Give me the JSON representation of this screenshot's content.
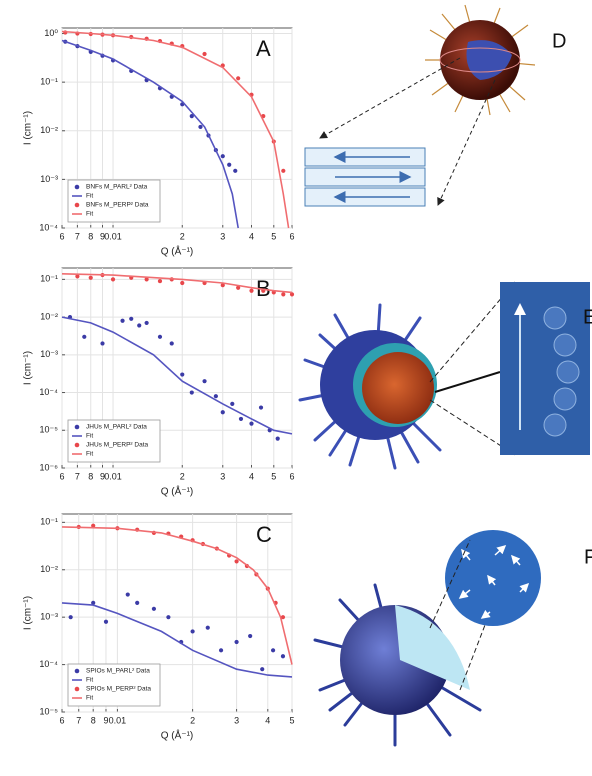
{
  "chart_data": [
    {
      "type": "line",
      "annotation": "A",
      "x_label": "Q (Å⁻¹)",
      "y_label": "I (cm⁻¹)",
      "log_x": true,
      "log_y": true,
      "grid": true,
      "legend": "lower-left",
      "xlim": [
        0.006,
        0.06
      ],
      "xticks": [
        {
          "value": 0.006,
          "label": "6"
        },
        {
          "value": 0.007,
          "label": "7"
        },
        {
          "value": 0.008,
          "label": "8"
        },
        {
          "value": 0.009,
          "label": "9"
        },
        0.01,
        {
          "value": 0.02,
          "label": "2"
        },
        {
          "value": 0.03,
          "label": "3"
        },
        {
          "value": 0.04,
          "label": "4"
        },
        {
          "value": 0.05,
          "label": "5"
        },
        {
          "value": 0.06,
          "label": "6"
        }
      ],
      "ylim": [
        0.0001,
        1.3
      ],
      "yticks": [
        {
          "value": 0.0001,
          "label": "10⁻⁴"
        },
        {
          "value": 0.001,
          "label": "10⁻³"
        },
        {
          "value": 0.01,
          "label": "10⁻²"
        },
        {
          "value": 0.1,
          "label": "10⁻¹"
        },
        {
          "value": 1,
          "label": "10⁰"
        }
      ],
      "series": [
        {
          "name": "BNFs M_PARL² Data",
          "mode": "markers",
          "color": "#3b3ba6",
          "x": [
            0.0062,
            0.007,
            0.008,
            0.009,
            0.01,
            0.012,
            0.014,
            0.016,
            0.018,
            0.02,
            0.022,
            0.024,
            0.026,
            0.028,
            0.03,
            0.032,
            0.034
          ],
          "values": [
            0.68,
            0.55,
            0.42,
            0.35,
            0.28,
            0.17,
            0.11,
            0.075,
            0.05,
            0.035,
            0.02,
            0.012,
            0.008,
            0.004,
            0.003,
            0.002,
            0.0015
          ]
        },
        {
          "name": "Fit",
          "mode": "line",
          "color": "#5555c0",
          "x": [
            0.006,
            0.008,
            0.01,
            0.015,
            0.02,
            0.025,
            0.03,
            0.033,
            0.035
          ],
          "values": [
            0.72,
            0.45,
            0.3,
            0.1,
            0.04,
            0.012,
            0.002,
            0.0005,
            0.0001
          ]
        },
        {
          "name": "BNFs M_PERP² Data",
          "mode": "markers",
          "color": "#e8474b",
          "x": [
            0.0062,
            0.007,
            0.008,
            0.009,
            0.01,
            0.012,
            0.014,
            0.016,
            0.018,
            0.02,
            0.025,
            0.03,
            0.035,
            0.04,
            0.045,
            0.05,
            0.055
          ],
          "values": [
            1.05,
            1.0,
            0.98,
            0.95,
            0.92,
            0.85,
            0.78,
            0.7,
            0.62,
            0.55,
            0.38,
            0.22,
            0.12,
            0.055,
            0.02,
            0.006,
            0.0015
          ]
        },
        {
          "name": "Fit",
          "mode": "line",
          "color": "#f06d70",
          "x": [
            0.006,
            0.008,
            0.01,
            0.015,
            0.02,
            0.03,
            0.04,
            0.05,
            0.055,
            0.058
          ],
          "values": [
            1.1,
            1.0,
            0.92,
            0.72,
            0.52,
            0.2,
            0.05,
            0.006,
            0.0005,
            0.0001
          ]
        }
      ]
    },
    {
      "type": "line",
      "annotation": "B",
      "x_label": "Q (Å⁻¹)",
      "y_label": "I (cm⁻¹)",
      "log_x": true,
      "log_y": true,
      "grid": true,
      "legend": "lower-left",
      "xlim": [
        0.006,
        0.06
      ],
      "xticks": [
        {
          "value": 0.006,
          "label": "6"
        },
        {
          "value": 0.007,
          "label": "7"
        },
        {
          "value": 0.008,
          "label": "8"
        },
        {
          "value": 0.009,
          "label": "9"
        },
        0.01,
        {
          "value": 0.02,
          "label": "2"
        },
        {
          "value": 0.03,
          "label": "3"
        },
        {
          "value": 0.04,
          "label": "4"
        },
        {
          "value": 0.05,
          "label": "5"
        },
        {
          "value": 0.06,
          "label": "6"
        }
      ],
      "ylim": [
        1e-06,
        0.2
      ],
      "yticks": [
        {
          "value": 1e-06,
          "label": "10⁻⁶"
        },
        {
          "value": 1e-05,
          "label": "10⁻⁵"
        },
        {
          "value": 0.0001,
          "label": "10⁻⁴"
        },
        {
          "value": 0.001,
          "label": "10⁻³"
        },
        {
          "value": 0.01,
          "label": "10⁻²"
        },
        {
          "value": 0.1,
          "label": "10⁻¹"
        }
      ],
      "series": [
        {
          "name": "JHUs M_PARL² Data",
          "mode": "markers",
          "color": "#3b3ba6",
          "x": [
            0.0065,
            0.0075,
            0.009,
            0.011,
            0.012,
            0.013,
            0.014,
            0.016,
            0.018,
            0.02,
            0.022,
            0.025,
            0.028,
            0.03,
            0.033,
            0.036,
            0.04,
            0.044,
            0.048,
            0.052
          ],
          "values": [
            0.01,
            0.003,
            0.002,
            0.008,
            0.009,
            0.006,
            0.007,
            0.003,
            0.002,
            0.0003,
            0.0001,
            0.0002,
            8e-05,
            3e-05,
            5e-05,
            2e-05,
            1.5e-05,
            4e-05,
            1e-05,
            6e-06
          ]
        },
        {
          "name": "Fit",
          "mode": "line",
          "color": "#5555c0",
          "x": [
            0.006,
            0.008,
            0.01,
            0.015,
            0.02,
            0.03,
            0.04,
            0.05,
            0.06
          ],
          "values": [
            0.01,
            0.007,
            0.004,
            0.001,
            0.0002,
            5e-05,
            2e-05,
            1e-05,
            8e-06
          ]
        },
        {
          "name": "JHUs M_PERP² Data",
          "mode": "markers",
          "color": "#e8474b",
          "x": [
            0.007,
            0.008,
            0.009,
            0.01,
            0.012,
            0.014,
            0.016,
            0.018,
            0.02,
            0.025,
            0.03,
            0.035,
            0.04,
            0.045,
            0.05,
            0.055,
            0.06
          ],
          "values": [
            0.12,
            0.11,
            0.13,
            0.1,
            0.11,
            0.1,
            0.09,
            0.1,
            0.08,
            0.08,
            0.07,
            0.06,
            0.05,
            0.05,
            0.045,
            0.04,
            0.04
          ]
        },
        {
          "name": "Fit",
          "mode": "line",
          "color": "#f06d70",
          "x": [
            0.006,
            0.01,
            0.02,
            0.03,
            0.04,
            0.05,
            0.06
          ],
          "values": [
            0.14,
            0.13,
            0.1,
            0.08,
            0.06,
            0.05,
            0.045
          ]
        }
      ]
    },
    {
      "type": "line",
      "annotation": "C",
      "x_label": "Q (Å⁻¹)",
      "y_label": "I (cm⁻¹)",
      "log_x": true,
      "log_y": true,
      "grid": true,
      "legend": "lower-left",
      "xlim": [
        0.006,
        0.05
      ],
      "xticks": [
        {
          "value": 0.006,
          "label": "6"
        },
        {
          "value": 0.007,
          "label": "7"
        },
        {
          "value": 0.008,
          "label": "8"
        },
        {
          "value": 0.009,
          "label": "9"
        },
        0.01,
        {
          "value": 0.02,
          "label": "2"
        },
        {
          "value": 0.03,
          "label": "3"
        },
        {
          "value": 0.04,
          "label": "4"
        },
        {
          "value": 0.05,
          "label": "5"
        }
      ],
      "ylim": [
        1e-05,
        0.15
      ],
      "yticks": [
        {
          "value": 1e-05,
          "label": "10⁻⁵"
        },
        {
          "value": 0.0001,
          "label": "10⁻⁴"
        },
        {
          "value": 0.001,
          "label": "10⁻³"
        },
        {
          "value": 0.01,
          "label": "10⁻²"
        },
        {
          "value": 0.1,
          "label": "10⁻¹"
        }
      ],
      "series": [
        {
          "name": "SPIOs M_PARL² Data",
          "mode": "markers",
          "color": "#3b3ba6",
          "x": [
            0.0065,
            0.008,
            0.009,
            0.011,
            0.012,
            0.014,
            0.016,
            0.018,
            0.02,
            0.023,
            0.026,
            0.03,
            0.034,
            0.038,
            0.042,
            0.046
          ],
          "values": [
            0.001,
            0.002,
            0.0008,
            0.003,
            0.002,
            0.0015,
            0.001,
            0.0003,
            0.0005,
            0.0006,
            0.0002,
            0.0003,
            0.0004,
            8e-05,
            0.0002,
            0.00015
          ]
        },
        {
          "name": "Fit",
          "mode": "line",
          "color": "#5555c0",
          "x": [
            0.006,
            0.008,
            0.01,
            0.015,
            0.02,
            0.03,
            0.04,
            0.05
          ],
          "values": [
            0.002,
            0.0018,
            0.0012,
            0.0005,
            0.0002,
            8e-05,
            6e-05,
            5.5e-05
          ]
        },
        {
          "name": "SPIOs M_PERP² Data",
          "mode": "markers",
          "color": "#e8474b",
          "x": [
            0.007,
            0.008,
            0.01,
            0.012,
            0.014,
            0.016,
            0.018,
            0.02,
            0.022,
            0.025,
            0.028,
            0.03,
            0.033,
            0.036,
            0.04,
            0.043,
            0.046
          ],
          "values": [
            0.08,
            0.085,
            0.075,
            0.07,
            0.06,
            0.058,
            0.05,
            0.042,
            0.035,
            0.028,
            0.02,
            0.015,
            0.012,
            0.008,
            0.004,
            0.002,
            0.001
          ]
        },
        {
          "name": "Fit",
          "mode": "line",
          "color": "#f06d70",
          "x": [
            0.006,
            0.01,
            0.015,
            0.02,
            0.025,
            0.03,
            0.035,
            0.04,
            0.045,
            0.05
          ],
          "values": [
            0.08,
            0.075,
            0.06,
            0.04,
            0.028,
            0.018,
            0.01,
            0.004,
            0.001,
            0.0001
          ]
        }
      ]
    }
  ],
  "illustrations": [
    {
      "label": "D"
    },
    {
      "label": "E"
    },
    {
      "label": "F"
    }
  ]
}
